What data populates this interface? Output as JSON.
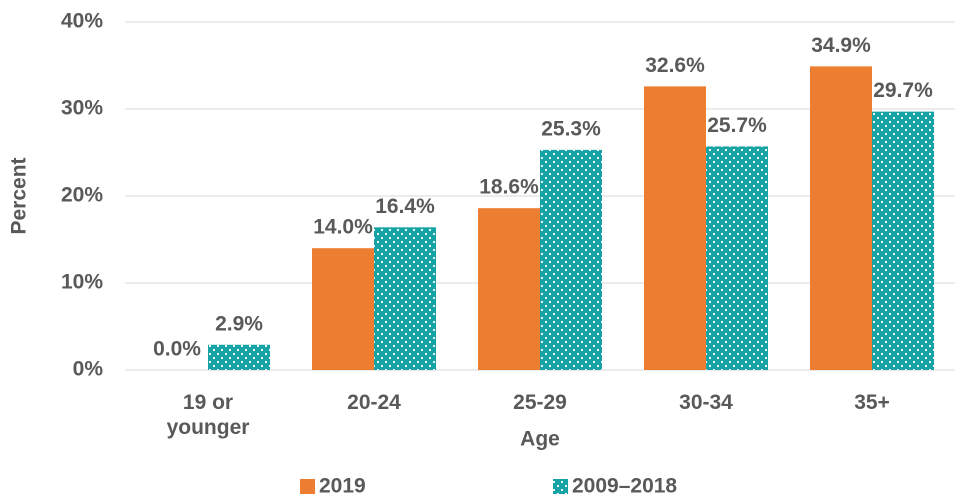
{
  "chart_data": {
    "type": "bar",
    "categories": [
      "19 or younger",
      "20-24",
      "25-29",
      "30-34",
      "35+"
    ],
    "series": [
      {
        "name": "2019",
        "color": "#ed7d31",
        "values": [
          0,
          14,
          18.6,
          32.6,
          34.9
        ],
        "value_labels": [
          "0.0%",
          "14.0%",
          "18.6%",
          "32.6%",
          "34.9%"
        ]
      },
      {
        "name": "2009–2018",
        "color": "#16a3a6",
        "pattern": "dots",
        "values": [
          2.9,
          16.4,
          25.3,
          25.7,
          29.7
        ],
        "value_labels": [
          "2.9%",
          "16.4%",
          "25.3%",
          "25.7%",
          "29.7%"
        ]
      }
    ],
    "xlabel": "Age",
    "ylabel": "Percent",
    "ylim": [
      0,
      40
    ],
    "yticks": [
      {
        "value": 0,
        "label": "0%"
      },
      {
        "value": 10,
        "label": "10%"
      },
      {
        "value": 20,
        "label": "20%"
      },
      {
        "value": 30,
        "label": "30%"
      },
      {
        "value": 40,
        "label": "40%"
      }
    ],
    "grid": true,
    "legend": "bottom"
  }
}
